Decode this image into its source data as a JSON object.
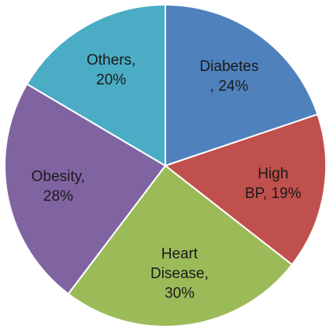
{
  "chart_data": {
    "type": "pie",
    "values": [
      24,
      19,
      30,
      28,
      20
    ],
    "value_labels": [
      [
        "Diabetes",
        ", 24%"
      ],
      [
        "High",
        "BP, 19%"
      ],
      [
        "Heart",
        "Disease,",
        "30%"
      ],
      [
        "Obesity,",
        "28%"
      ],
      [
        "Others,",
        "20%"
      ]
    ],
    "colors": [
      "#4f81bd",
      "#c0504d",
      "#9bbb59",
      "#8064a2",
      "#4bacc6"
    ]
  }
}
